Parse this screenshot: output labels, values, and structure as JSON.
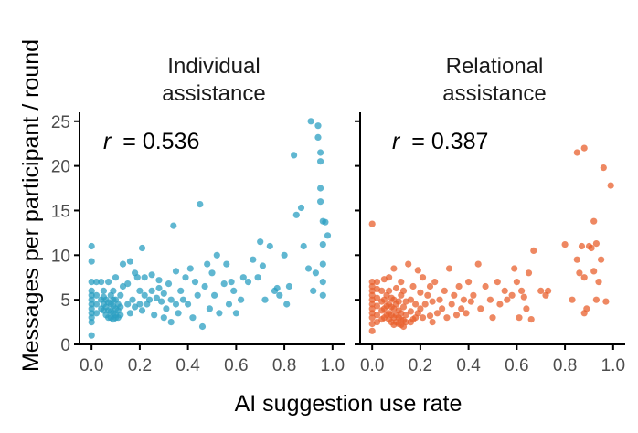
{
  "chart_data": {
    "type": "scatter",
    "xlabel": "AI suggestion use rate",
    "ylabel": "Messages per participant / round",
    "xlim": [
      -0.05,
      1.05
    ],
    "ylim": [
      0,
      26
    ],
    "xticks": [
      "0.0",
      "0.2",
      "0.4",
      "0.6",
      "0.8",
      "1.0"
    ],
    "yticks": [
      "0",
      "5",
      "10",
      "15",
      "20",
      "25"
    ],
    "panels": [
      {
        "title_line1": "Individual",
        "title_line2": "assistance",
        "r_label": "r",
        "r_value": "= 0.536",
        "color": "#2b9fc2",
        "points": [
          [
            0.0,
            1.0
          ],
          [
            0.0,
            2.5
          ],
          [
            0.0,
            3.0
          ],
          [
            0.0,
            3.5
          ],
          [
            0.0,
            4.0
          ],
          [
            0.0,
            4.5
          ],
          [
            0.0,
            5.0
          ],
          [
            0.0,
            5.5
          ],
          [
            0.0,
            6.0
          ],
          [
            0.0,
            7.0
          ],
          [
            0.0,
            9.3
          ],
          [
            0.0,
            11.0
          ],
          [
            0.02,
            3.5
          ],
          [
            0.02,
            4.5
          ],
          [
            0.02,
            5.5
          ],
          [
            0.02,
            7.0
          ],
          [
            0.04,
            4.0
          ],
          [
            0.04,
            5.0
          ],
          [
            0.04,
            7.0
          ],
          [
            0.05,
            3.8
          ],
          [
            0.05,
            4.5
          ],
          [
            0.05,
            5.3
          ],
          [
            0.05,
            6.0
          ],
          [
            0.06,
            3.3
          ],
          [
            0.06,
            4.2
          ],
          [
            0.06,
            5.0
          ],
          [
            0.07,
            3.0
          ],
          [
            0.07,
            3.8
          ],
          [
            0.07,
            4.7
          ],
          [
            0.07,
            7.0
          ],
          [
            0.08,
            3.0
          ],
          [
            0.08,
            3.7
          ],
          [
            0.08,
            4.5
          ],
          [
            0.08,
            5.5
          ],
          [
            0.09,
            2.8
          ],
          [
            0.09,
            3.5
          ],
          [
            0.09,
            4.3
          ],
          [
            0.09,
            5.0
          ],
          [
            0.09,
            6.0
          ],
          [
            0.1,
            3.0
          ],
          [
            0.1,
            3.3
          ],
          [
            0.1,
            4.0
          ],
          [
            0.1,
            5.0
          ],
          [
            0.1,
            7.5
          ],
          [
            0.11,
            3.0
          ],
          [
            0.11,
            3.8
          ],
          [
            0.11,
            4.5
          ],
          [
            0.12,
            3.3
          ],
          [
            0.12,
            4.2
          ],
          [
            0.12,
            5.5
          ],
          [
            0.13,
            6.5
          ],
          [
            0.13,
            9.0
          ],
          [
            0.15,
            6.8
          ],
          [
            0.15,
            4.5
          ],
          [
            0.16,
            3.5
          ],
          [
            0.16,
            9.3
          ],
          [
            0.17,
            5.0
          ],
          [
            0.18,
            4.2
          ],
          [
            0.18,
            8.0
          ],
          [
            0.19,
            7.5
          ],
          [
            0.2,
            6.0
          ],
          [
            0.2,
            4.5
          ],
          [
            0.21,
            3.8
          ],
          [
            0.21,
            10.8
          ],
          [
            0.22,
            7.5
          ],
          [
            0.22,
            5.5
          ],
          [
            0.23,
            4.5
          ],
          [
            0.24,
            5.0
          ],
          [
            0.25,
            7.8
          ],
          [
            0.25,
            6.0
          ],
          [
            0.26,
            3.3
          ],
          [
            0.27,
            5.2
          ],
          [
            0.28,
            7.2
          ],
          [
            0.28,
            6.3
          ],
          [
            0.29,
            4.8
          ],
          [
            0.3,
            3.0
          ],
          [
            0.3,
            5.7
          ],
          [
            0.31,
            4.0
          ],
          [
            0.32,
            6.8
          ],
          [
            0.33,
            2.5
          ],
          [
            0.33,
            5.0
          ],
          [
            0.34,
            13.3
          ],
          [
            0.35,
            8.2
          ],
          [
            0.35,
            4.5
          ],
          [
            0.36,
            3.5
          ],
          [
            0.37,
            6.0
          ],
          [
            0.38,
            5.0
          ],
          [
            0.39,
            7.5
          ],
          [
            0.4,
            4.5
          ],
          [
            0.41,
            8.5
          ],
          [
            0.42,
            3.0
          ],
          [
            0.43,
            7.0
          ],
          [
            0.44,
            5.5
          ],
          [
            0.45,
            15.7
          ],
          [
            0.46,
            2.0
          ],
          [
            0.47,
            6.5
          ],
          [
            0.48,
            9.0
          ],
          [
            0.49,
            4.0
          ],
          [
            0.5,
            8.0
          ],
          [
            0.51,
            5.5
          ],
          [
            0.52,
            10.0
          ],
          [
            0.53,
            3.5
          ],
          [
            0.55,
            6.8
          ],
          [
            0.56,
            9.0
          ],
          [
            0.57,
            4.5
          ],
          [
            0.58,
            7.0
          ],
          [
            0.59,
            6.0
          ],
          [
            0.6,
            3.5
          ],
          [
            0.62,
            5.0
          ],
          [
            0.63,
            7.5
          ],
          [
            0.65,
            7.0
          ],
          [
            0.67,
            9.5
          ],
          [
            0.69,
            7.5
          ],
          [
            0.7,
            11.5
          ],
          [
            0.71,
            8.8
          ],
          [
            0.72,
            5.0
          ],
          [
            0.74,
            11.0
          ],
          [
            0.76,
            6.0
          ],
          [
            0.77,
            6.3
          ],
          [
            0.78,
            5.5
          ],
          [
            0.8,
            10.0
          ],
          [
            0.81,
            4.5
          ],
          [
            0.82,
            6.5
          ],
          [
            0.84,
            21.2
          ],
          [
            0.85,
            14.5
          ],
          [
            0.87,
            15.3
          ],
          [
            0.88,
            11.0
          ],
          [
            0.9,
            8.5
          ],
          [
            0.91,
            25.0
          ],
          [
            0.92,
            6.0
          ],
          [
            0.93,
            8.0
          ],
          [
            0.94,
            24.5
          ],
          [
            0.94,
            23.2
          ],
          [
            0.95,
            21.5
          ],
          [
            0.95,
            20.5
          ],
          [
            0.95,
            17.5
          ],
          [
            0.95,
            16.0
          ],
          [
            0.96,
            13.8
          ],
          [
            0.96,
            11.2
          ],
          [
            0.96,
            9.0
          ],
          [
            0.96,
            7.0
          ],
          [
            0.96,
            5.5
          ],
          [
            0.97,
            13.7
          ],
          [
            0.98,
            12.2
          ]
        ]
      },
      {
        "title_line1": "Relational",
        "title_line2": "assistance",
        "r_label": "r",
        "r_value": "= 0.387",
        "color": "#e8602e",
        "points": [
          [
            0.0,
            1.5
          ],
          [
            0.0,
            2.3
          ],
          [
            0.0,
            3.0
          ],
          [
            0.0,
            3.5
          ],
          [
            0.0,
            4.0
          ],
          [
            0.0,
            4.5
          ],
          [
            0.0,
            5.0
          ],
          [
            0.0,
            5.5
          ],
          [
            0.0,
            6.0
          ],
          [
            0.0,
            6.5
          ],
          [
            0.0,
            7.0
          ],
          [
            0.0,
            13.5
          ],
          [
            0.02,
            2.5
          ],
          [
            0.02,
            3.3
          ],
          [
            0.02,
            4.3
          ],
          [
            0.02,
            5.2
          ],
          [
            0.02,
            6.2
          ],
          [
            0.02,
            7.0
          ],
          [
            0.04,
            2.8
          ],
          [
            0.04,
            3.8
          ],
          [
            0.04,
            4.8
          ],
          [
            0.04,
            6.0
          ],
          [
            0.05,
            3.0
          ],
          [
            0.05,
            4.0
          ],
          [
            0.05,
            5.0
          ],
          [
            0.05,
            7.3
          ],
          [
            0.06,
            3.3
          ],
          [
            0.06,
            4.3
          ],
          [
            0.06,
            5.5
          ],
          [
            0.07,
            2.8
          ],
          [
            0.07,
            3.5
          ],
          [
            0.07,
            4.5
          ],
          [
            0.07,
            6.0
          ],
          [
            0.07,
            7.5
          ],
          [
            0.08,
            2.5
          ],
          [
            0.08,
            3.3
          ],
          [
            0.08,
            4.2
          ],
          [
            0.08,
            5.2
          ],
          [
            0.09,
            2.2
          ],
          [
            0.09,
            3.0
          ],
          [
            0.09,
            4.0
          ],
          [
            0.09,
            5.0
          ],
          [
            0.09,
            8.5
          ],
          [
            0.1,
            2.5
          ],
          [
            0.1,
            3.3
          ],
          [
            0.1,
            4.5
          ],
          [
            0.1,
            6.3
          ],
          [
            0.11,
            2.3
          ],
          [
            0.11,
            3.0
          ],
          [
            0.11,
            3.8
          ],
          [
            0.11,
            4.8
          ],
          [
            0.12,
            2.2
          ],
          [
            0.12,
            2.8
          ],
          [
            0.12,
            3.5
          ],
          [
            0.12,
            5.5
          ],
          [
            0.12,
            7.0
          ],
          [
            0.13,
            2.0
          ],
          [
            0.13,
            2.7
          ],
          [
            0.13,
            4.2
          ],
          [
            0.13,
            6.0
          ],
          [
            0.14,
            2.5
          ],
          [
            0.14,
            3.3
          ],
          [
            0.14,
            4.8
          ],
          [
            0.15,
            9.0
          ],
          [
            0.16,
            2.5
          ],
          [
            0.16,
            3.7
          ],
          [
            0.16,
            5.0
          ],
          [
            0.17,
            2.8
          ],
          [
            0.17,
            6.5
          ],
          [
            0.18,
            3.0
          ],
          [
            0.18,
            4.5
          ],
          [
            0.19,
            3.5
          ],
          [
            0.19,
            8.3
          ],
          [
            0.2,
            4.0
          ],
          [
            0.2,
            5.8
          ],
          [
            0.21,
            3.0
          ],
          [
            0.21,
            7.5
          ],
          [
            0.22,
            4.5
          ],
          [
            0.23,
            5.5
          ],
          [
            0.24,
            3.2
          ],
          [
            0.24,
            6.5
          ],
          [
            0.25,
            2.5
          ],
          [
            0.25,
            4.8
          ],
          [
            0.26,
            7.0
          ],
          [
            0.27,
            3.5
          ],
          [
            0.28,
            5.0
          ],
          [
            0.29,
            4.0
          ],
          [
            0.3,
            6.0
          ],
          [
            0.31,
            3.0
          ],
          [
            0.32,
            8.5
          ],
          [
            0.33,
            4.5
          ],
          [
            0.34,
            5.5
          ],
          [
            0.35,
            3.3
          ],
          [
            0.36,
            6.5
          ],
          [
            0.37,
            4.0
          ],
          [
            0.38,
            5.0
          ],
          [
            0.39,
            3.5
          ],
          [
            0.4,
            7.0
          ],
          [
            0.41,
            4.8
          ],
          [
            0.42,
            5.5
          ],
          [
            0.44,
            9.0
          ],
          [
            0.45,
            4.0
          ],
          [
            0.47,
            6.5
          ],
          [
            0.49,
            5.0
          ],
          [
            0.5,
            3.0
          ],
          [
            0.52,
            7.0
          ],
          [
            0.53,
            4.5
          ],
          [
            0.55,
            6.0
          ],
          [
            0.56,
            5.0
          ],
          [
            0.58,
            5.5
          ],
          [
            0.59,
            8.5
          ],
          [
            0.6,
            7.0
          ],
          [
            0.61,
            3.0
          ],
          [
            0.62,
            6.0
          ],
          [
            0.63,
            5.3
          ],
          [
            0.64,
            4.0
          ],
          [
            0.65,
            8.0
          ],
          [
            0.66,
            2.8
          ],
          [
            0.67,
            10.5
          ],
          [
            0.7,
            6.0
          ],
          [
            0.72,
            5.5
          ],
          [
            0.73,
            6.0
          ],
          [
            0.8,
            11.2
          ],
          [
            0.83,
            5.0
          ],
          [
            0.85,
            21.5
          ],
          [
            0.85,
            9.5
          ],
          [
            0.86,
            8.0
          ],
          [
            0.87,
            11.0
          ],
          [
            0.88,
            22.0
          ],
          [
            0.88,
            7.5
          ],
          [
            0.88,
            3.5
          ],
          [
            0.89,
            4.0
          ],
          [
            0.9,
            11.0
          ],
          [
            0.91,
            10.8
          ],
          [
            0.92,
            13.8
          ],
          [
            0.92,
            8.2
          ],
          [
            0.93,
            11.3
          ],
          [
            0.93,
            5.0
          ],
          [
            0.94,
            7.0
          ],
          [
            0.95,
            9.5
          ],
          [
            0.96,
            19.8
          ],
          [
            0.97,
            4.8
          ],
          [
            0.99,
            17.8
          ]
        ]
      }
    ]
  }
}
